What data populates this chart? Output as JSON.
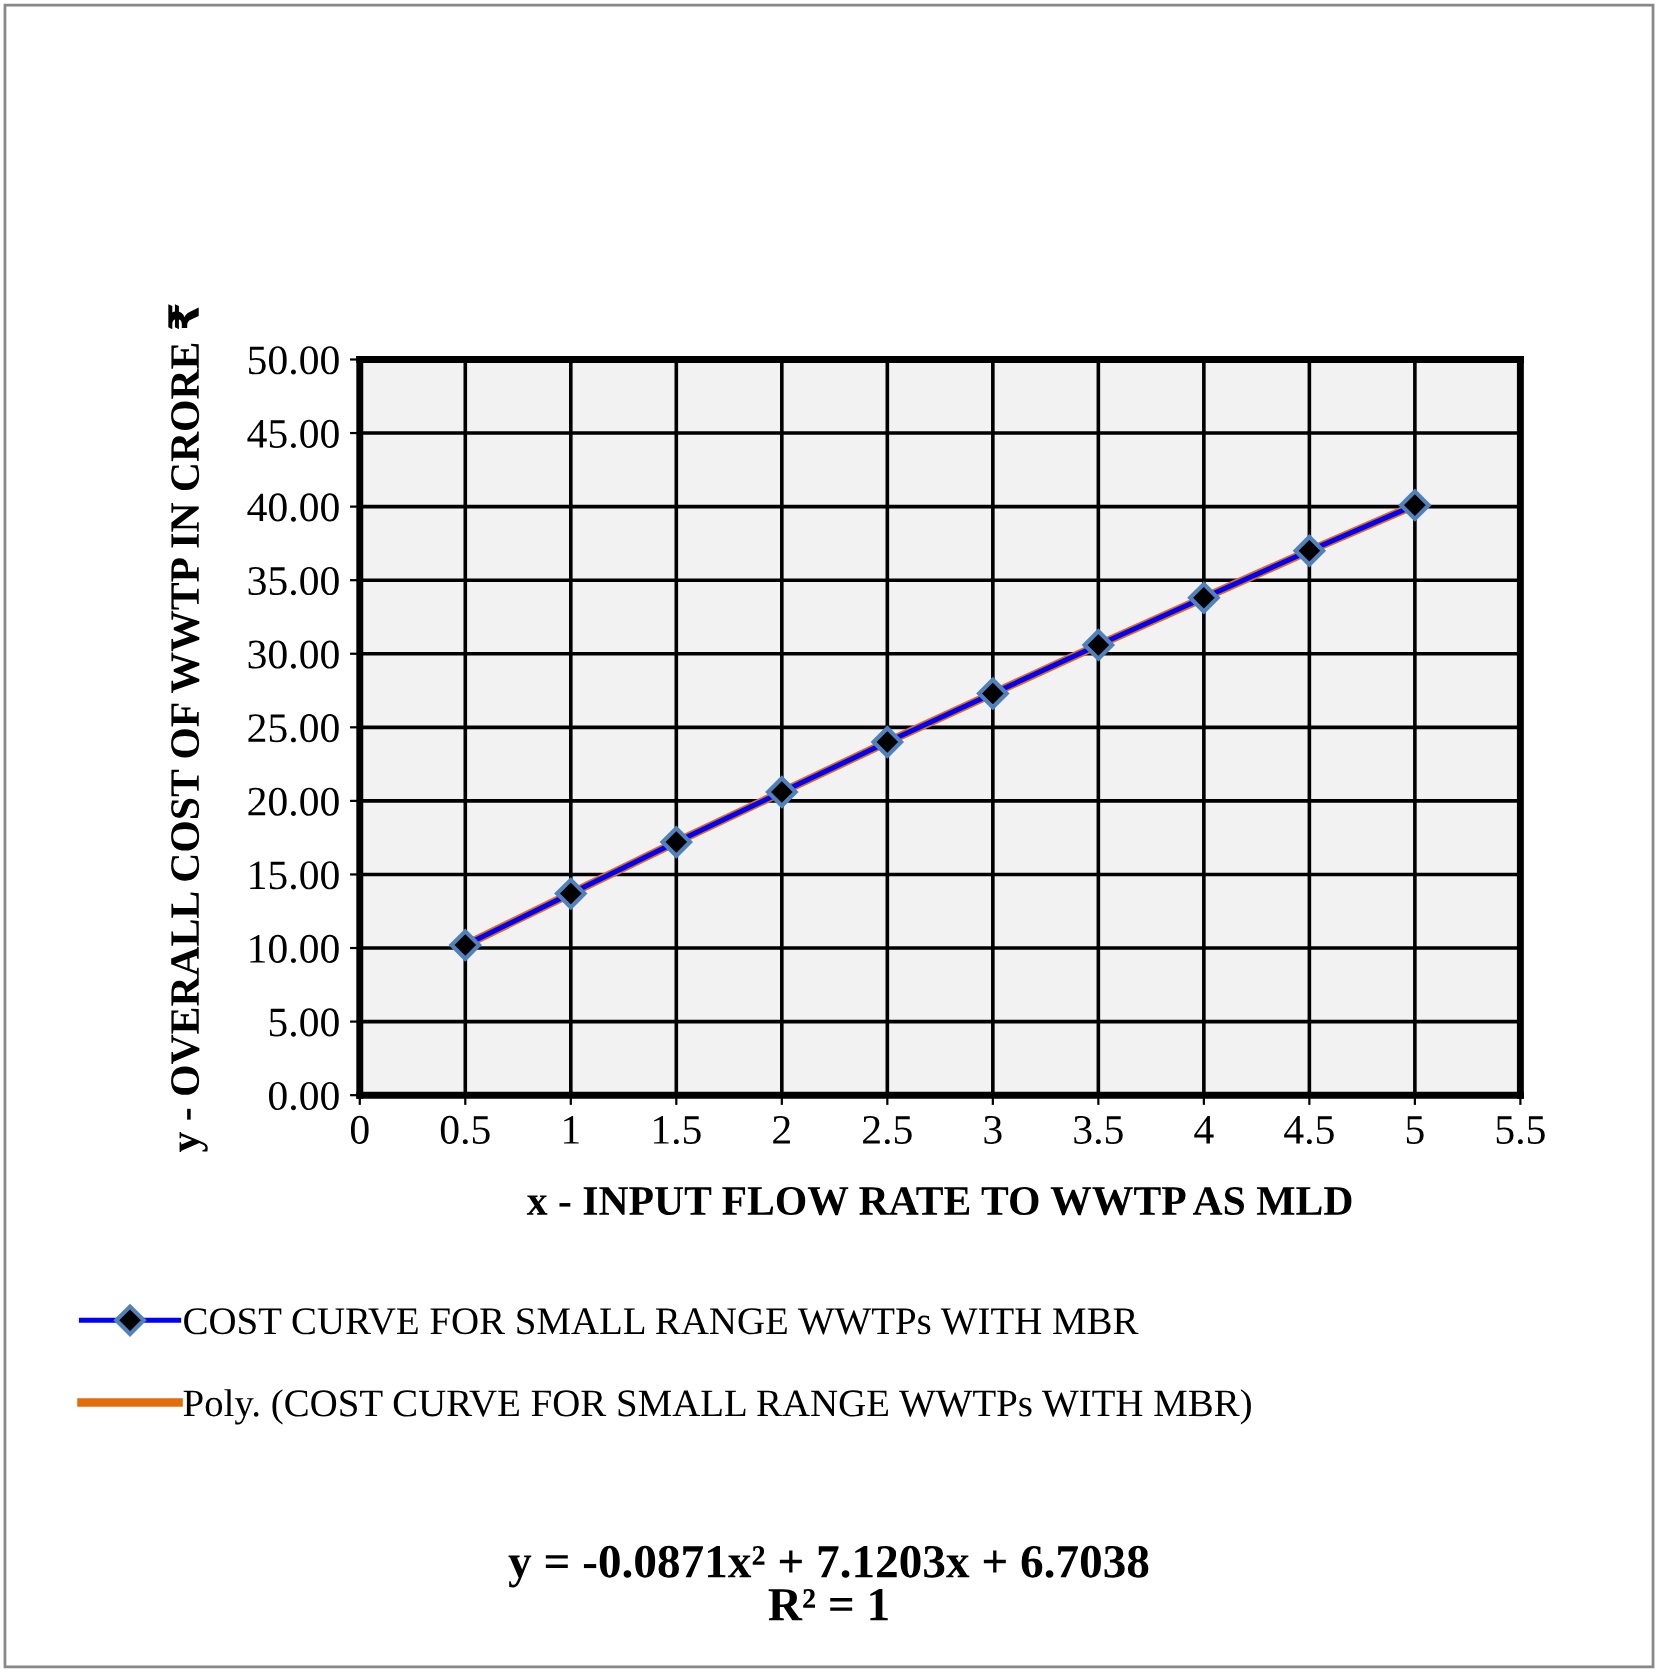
{
  "chart_data": {
    "type": "line",
    "xlabel": "x - INPUT FLOW RATE TO WWTP AS MLD",
    "ylabel": "y - OVERALL COST OF WWTP IN CRORE ₹",
    "x": [
      0.5,
      1,
      1.5,
      2,
      2.5,
      3,
      3.5,
      4,
      4.5,
      5
    ],
    "series": [
      {
        "name": "COST CURVE FOR SMALL RANGE WWTPs WITH MBR",
        "color": "#0000ff",
        "marker": "diamond",
        "values": [
          10.2,
          13.7,
          17.2,
          20.6,
          24.0,
          27.3,
          30.6,
          33.8,
          37.0,
          40.1
        ]
      },
      {
        "name": "Poly. (COST CURVE FOR SMALL RANGE WWTPs WITH MBR)",
        "color": "#e46c0a",
        "type": "line",
        "marker": "none",
        "x": [
          0.5,
          1,
          1.5,
          2,
          2.5,
          3,
          3.5,
          4,
          4.5,
          5
        ],
        "values": [
          10.2,
          13.7,
          17.2,
          20.6,
          24.0,
          27.3,
          30.6,
          33.8,
          37.0,
          40.1
        ]
      }
    ],
    "xlim": [
      0,
      5.5
    ],
    "xticks": [
      0,
      0.5,
      1,
      1.5,
      2,
      2.5,
      3,
      3.5,
      4,
      4.5,
      5,
      5.5
    ],
    "ylim": [
      0,
      50
    ],
    "yticks": [
      {
        "value": 0,
        "label": "0.00"
      },
      {
        "value": 5,
        "label": "5.00"
      },
      {
        "value": 10,
        "label": "10.00"
      },
      {
        "value": 15,
        "label": "15.00"
      },
      {
        "value": 20,
        "label": "20.00"
      },
      {
        "value": 25,
        "label": "25.00"
      },
      {
        "value": 30,
        "label": "30.00"
      },
      {
        "value": 35,
        "label": "35.00"
      },
      {
        "value": 40,
        "label": "40.00"
      },
      {
        "value": 45,
        "label": "45.00"
      },
      {
        "value": 50,
        "label": "50.00"
      }
    ],
    "grid": true,
    "legend": "bottom",
    "annotations": [
      "y = -0.0871x² + 7.1203x + 6.7038\nR² = 1"
    ]
  }
}
